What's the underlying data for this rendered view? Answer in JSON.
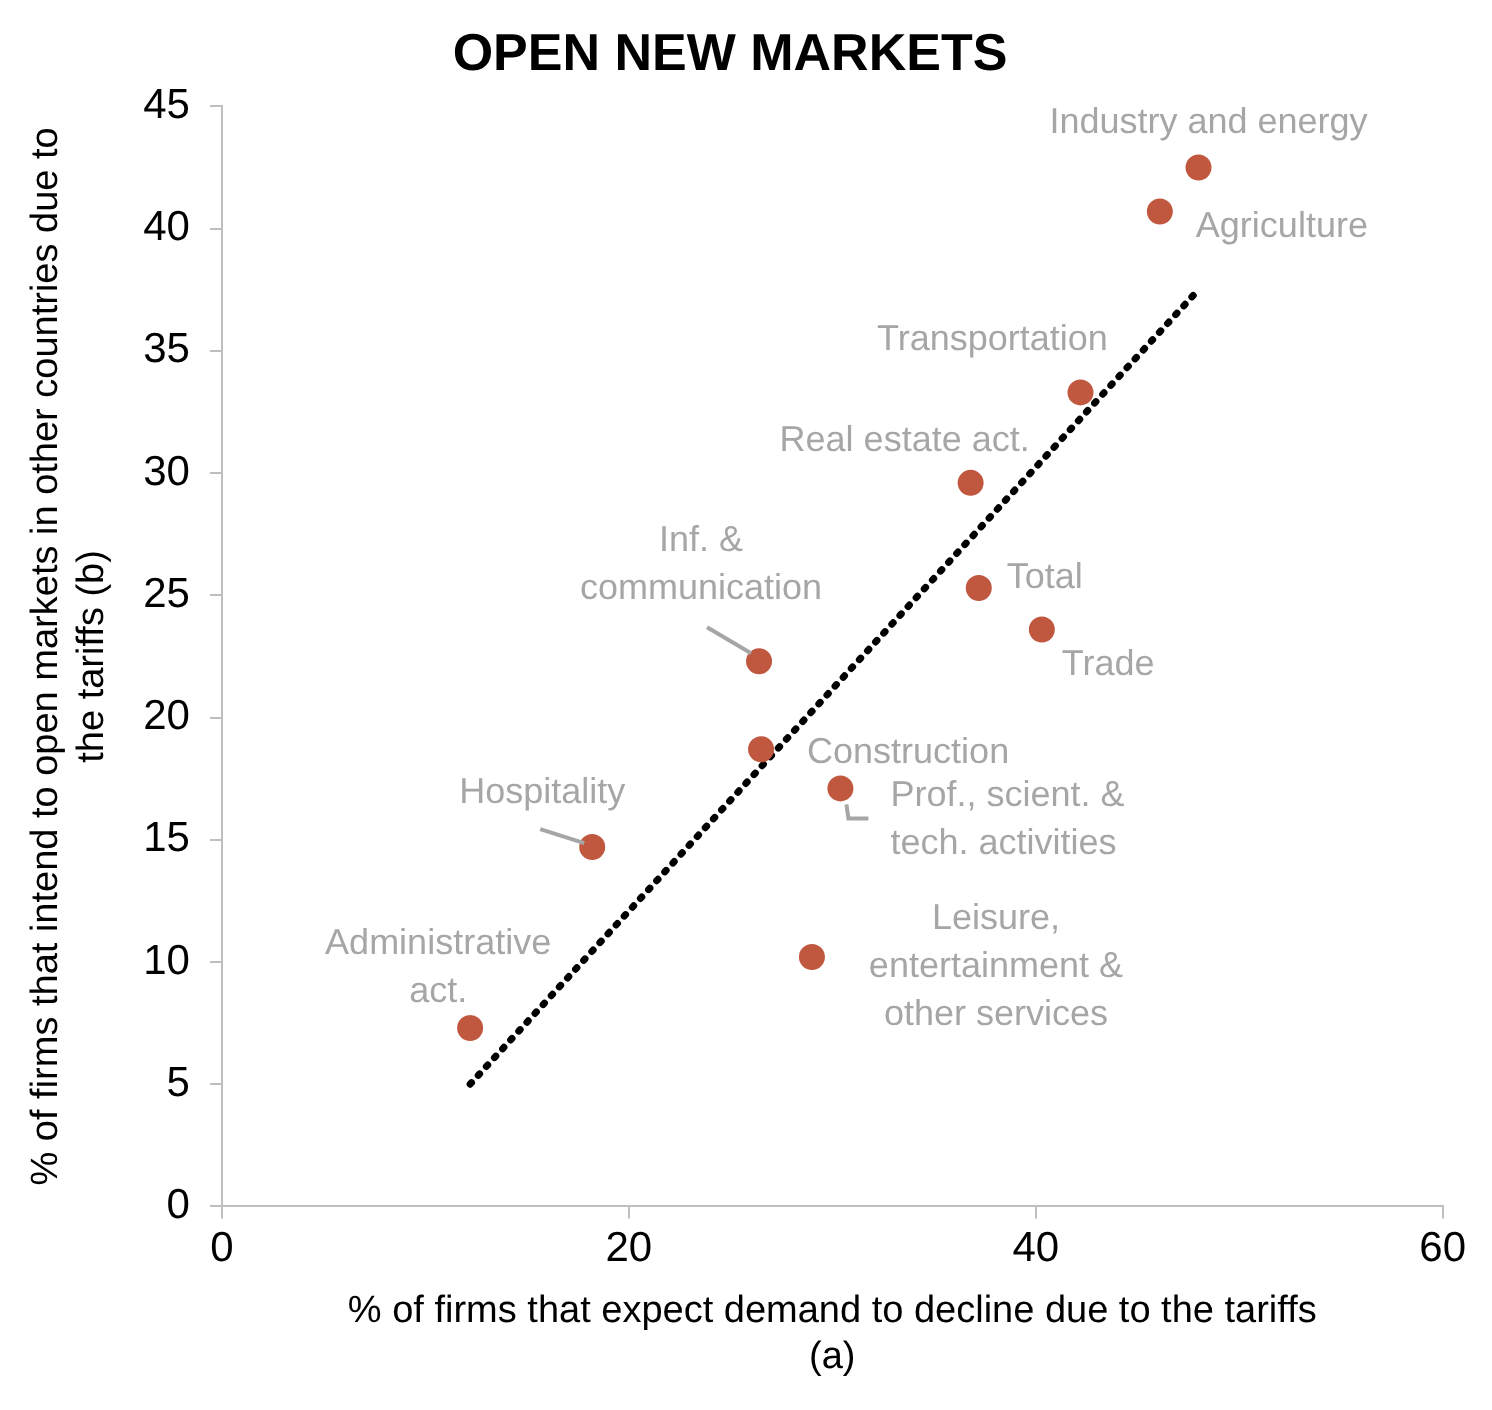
{
  "chart_data": {
    "type": "scatter",
    "title": "OPEN NEW MARKETS",
    "xlabel": "% of firms that expect demand to decline due to the tariffs\n(a)",
    "ylabel": "% of firms that intend to open markets in other countries due to\nthe tariffs (b)",
    "xlim": [
      0,
      60
    ],
    "xticks": [
      0,
      20,
      40,
      60
    ],
    "ylim": [
      0,
      45
    ],
    "yticks": [
      0,
      5,
      10,
      15,
      20,
      25,
      30,
      35,
      40,
      45
    ],
    "grid": false,
    "marker": "circle",
    "series": [
      {
        "color": "#c0583f",
        "x": [
          48,
          46.1,
          42.2,
          36.8,
          37.2,
          40.3,
          26.4,
          26.5,
          30.4,
          18.2,
          29,
          12.2
        ],
        "values": [
          42.5,
          40.7,
          33.3,
          29.6,
          25.3,
          23.6,
          22.3,
          18.7,
          17.1,
          14.7,
          10.2,
          7.3
        ]
      },
      {
        "type": "line",
        "color": "#000000",
        "line_style": "dotted",
        "marker": "none",
        "x": [
          12.2,
          48
        ],
        "values": [
          5,
          37.5
        ]
      }
    ],
    "annotations": [
      {
        "text": "Industry and energy",
        "x": 48,
        "y": 42.5
      },
      {
        "text": "Agriculture",
        "x": 46.1,
        "y": 40.7
      },
      {
        "text": "Transportation",
        "x": 42.2,
        "y": 33.3
      },
      {
        "text": "Real estate act.",
        "x": 36.8,
        "y": 29.6
      },
      {
        "text": "Total",
        "x": 37.2,
        "y": 25.3
      },
      {
        "text": "Trade",
        "x": 40.3,
        "y": 23.6
      },
      {
        "text": "Inf. &\ncommunication",
        "x": 26.4,
        "y": 22.3
      },
      {
        "text": "Construction",
        "x": 26.5,
        "y": 18.7
      },
      {
        "text": "Prof., scient. &\ntech. activities",
        "x": 30.4,
        "y": 17.1
      },
      {
        "text": "Hospitality",
        "x": 18.2,
        "y": 14.7
      },
      {
        "text": "Leisure,\nentertainment &\nother services",
        "x": 29,
        "y": 10.2
      },
      {
        "text": "Administrative\nact.",
        "x": 12.2,
        "y": 7.3
      }
    ]
  }
}
